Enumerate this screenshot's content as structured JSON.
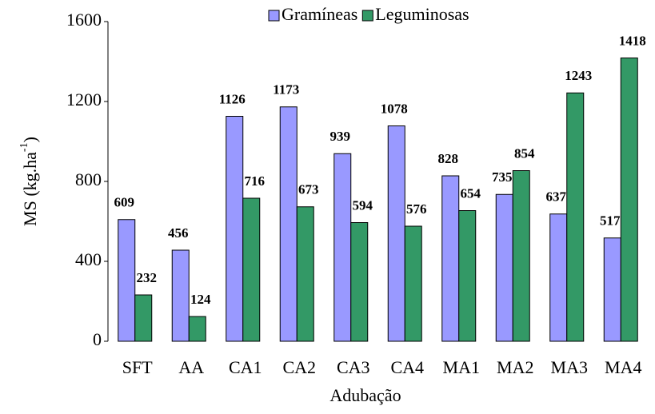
{
  "chart_data": {
    "type": "bar",
    "y_label": {
      "main": "MS (kg.ha",
      "sup": "-1",
      "end": ")"
    },
    "x_label": "Adubação",
    "categories": [
      "SFT",
      "AA",
      "CA1",
      "CA2",
      "CA3",
      "CA4",
      "MA1",
      "MA2",
      "MA3",
      "MA4"
    ],
    "series": [
      {
        "name": "Gramíneas",
        "color": "#9999ff",
        "label_color": "#0000ee",
        "values": [
          609,
          456,
          1126,
          1173,
          939,
          1078,
          828,
          735,
          637,
          517
        ]
      },
      {
        "name": "Leguminosas",
        "color": "#339966",
        "label_color": "#2a8a1a",
        "values": [
          232,
          124,
          716,
          673,
          594,
          576,
          654,
          854,
          1243,
          1418
        ]
      }
    ],
    "ylim": [
      0,
      1600
    ],
    "yticks": [
      0,
      400,
      800,
      1200,
      1600
    ],
    "grid": false,
    "legend": "top"
  }
}
